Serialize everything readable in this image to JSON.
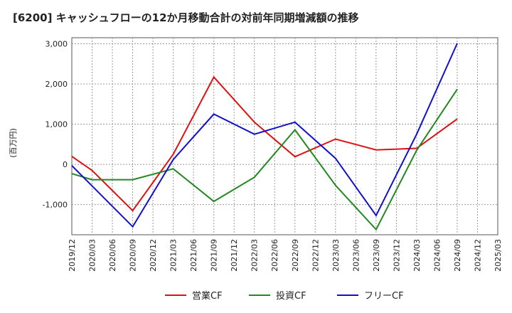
{
  "title": "[6200]  キャッシュフローの12か月移動合計の対前年同期増減額の推移",
  "chart_data": {
    "type": "line",
    "ylabel": "(百万円)",
    "ylim": [
      -1750,
      3150
    ],
    "yticks": [
      -1000,
      0,
      1000,
      2000,
      3000
    ],
    "ytick_labels": [
      "-1,000",
      "0",
      "1,000",
      "2,000",
      "3,000"
    ],
    "x": [
      "2019/12",
      "2020/03",
      "2020/06",
      "2020/09",
      "2020/12",
      "2021/03",
      "2021/06",
      "2021/09",
      "2021/12",
      "2022/03",
      "2022/06",
      "2022/09",
      "2022/12",
      "2023/03",
      "2023/06",
      "2023/09",
      "2023/12",
      "2024/03",
      "2024/06",
      "2024/09",
      "2024/12",
      "2025/03"
    ],
    "grid": true,
    "legend_position": "bottom",
    "series": [
      {
        "name": "営業CF",
        "color": "#dd1111",
        "values": [
          200,
          -150,
          null,
          -1150,
          null,
          250,
          null,
          2170,
          null,
          1050,
          null,
          190,
          null,
          630,
          null,
          360,
          null,
          400,
          null,
          1130,
          null,
          null
        ]
      },
      {
        "name": "投資CF",
        "color": "#228822",
        "values": [
          -230,
          -380,
          -380,
          -380,
          null,
          -110,
          null,
          -920,
          null,
          -320,
          null,
          860,
          null,
          -520,
          null,
          -1620,
          null,
          350,
          null,
          1870,
          null,
          null
        ]
      },
      {
        "name": "フリーCF",
        "color": "#1111cc",
        "values": [
          -30,
          null,
          null,
          -1550,
          null,
          120,
          null,
          1250,
          null,
          750,
          null,
          1050,
          null,
          150,
          null,
          -1270,
          null,
          750,
          null,
          3010,
          null,
          null
        ]
      }
    ]
  }
}
